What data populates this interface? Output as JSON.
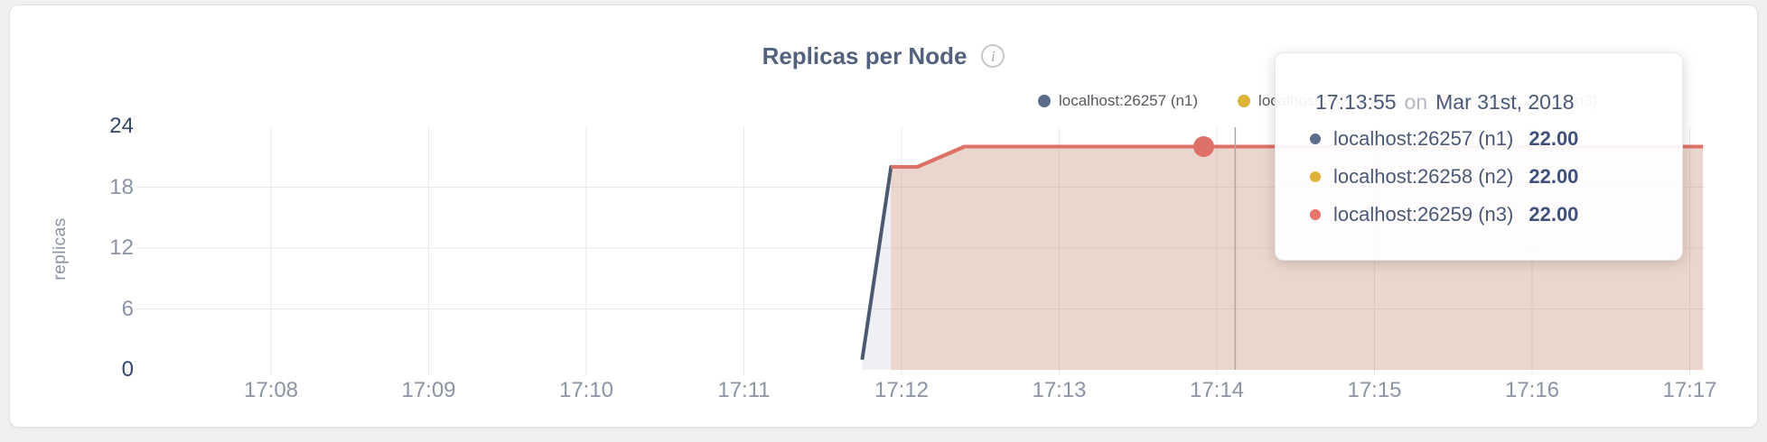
{
  "card": {
    "title": "Replicas per Node",
    "info_icon": "i"
  },
  "legend": {
    "items": [
      {
        "label": "localhost:26257 (n1)",
        "color": "#5b6c8c"
      },
      {
        "label": "localhost:26258 (n2)",
        "color": "#ddb237"
      },
      {
        "label": "localhost:26259 (n3)",
        "color": "#e8746c"
      }
    ]
  },
  "tooltip": {
    "time": "17:13:55",
    "conjunction": "on",
    "date": "Mar 31st, 2018",
    "rows": [
      {
        "label": "localhost:26257 (n1)",
        "value": "22.00",
        "color": "#5b6c8c"
      },
      {
        "label": "localhost:26258 (n2)",
        "value": "22.00",
        "color": "#ddb237"
      },
      {
        "label": "localhost:26259 (n3)",
        "value": "22.00",
        "color": "#e8746c"
      }
    ]
  },
  "chart_data": {
    "type": "area",
    "title": "Replicas per Node",
    "xlabel": "",
    "ylabel": "replicas",
    "ylim": [
      0,
      24
    ],
    "y_ticks": [
      0,
      6,
      12,
      18,
      24
    ],
    "x_ticks": [
      "17:08",
      "17:09",
      "17:10",
      "17:11",
      "17:12",
      "17:13",
      "17:14",
      "17:15",
      "17:16",
      "17:17"
    ],
    "grid": true,
    "legend_position": "top-right",
    "series": [
      {
        "name": "localhost:26257 (n1)",
        "short": "n1",
        "color": "#4d5871",
        "fill": "rgba(90,106,140,0.10)",
        "points": [
          [
            "17:11:45",
            1
          ],
          [
            "17:11:56",
            20
          ],
          [
            "17:12:06",
            20
          ],
          [
            "17:12:24",
            22
          ],
          [
            "17:17:05",
            22
          ]
        ]
      },
      {
        "name": "localhost:26258 (n2)",
        "short": "n2",
        "color": "#ddb237",
        "fill": "rgba(221,178,55,0.10)",
        "points": [
          [
            "17:11:56",
            20
          ],
          [
            "17:12:06",
            20
          ],
          [
            "17:12:24",
            22
          ],
          [
            "17:17:05",
            22
          ]
        ]
      },
      {
        "name": "localhost:26259 (n3)",
        "short": "n3",
        "color": "#df7067",
        "fill": "rgba(232,116,108,0.16)",
        "points": [
          [
            "17:11:56",
            20
          ],
          [
            "17:12:06",
            20
          ],
          [
            "17:12:24",
            22
          ],
          [
            "17:17:05",
            22
          ]
        ]
      }
    ],
    "hover": {
      "time": "17:13:55",
      "value": 22,
      "marker_series": "localhost:26259 (n3)",
      "marker_color": "#df7067",
      "guideline_time": "17:14:07"
    }
  }
}
